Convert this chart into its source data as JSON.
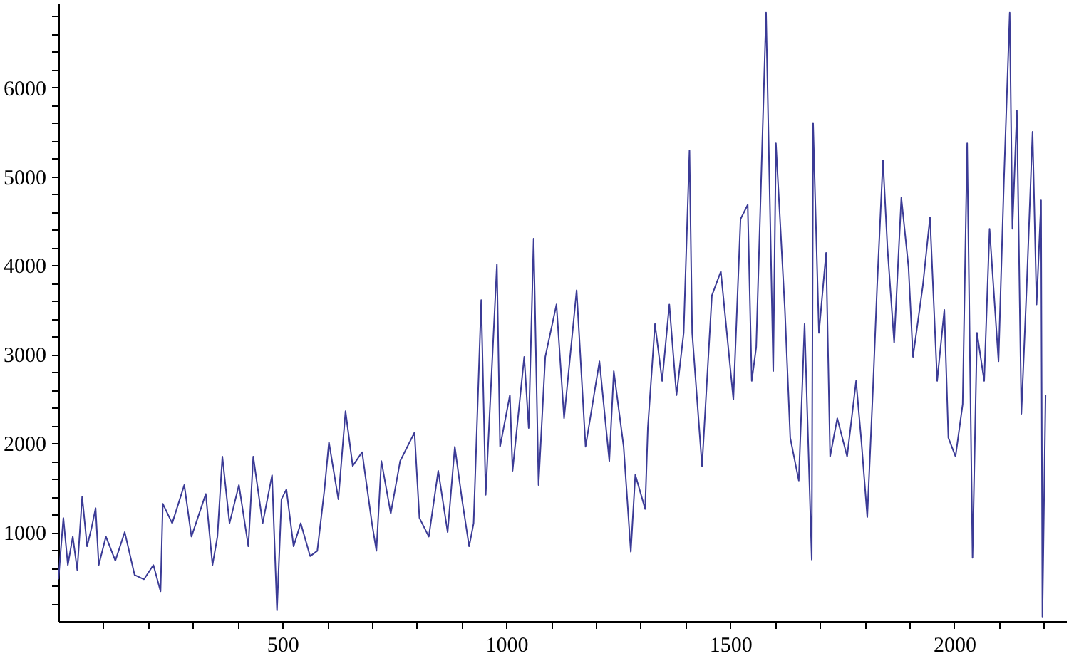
{
  "chart_data": {
    "type": "line",
    "xlim": [
      0,
      2250
    ],
    "ylim": [
      0,
      6950
    ],
    "xticks": [
      {
        "value": 100,
        "label": null
      },
      {
        "value": 200,
        "label": null
      },
      {
        "value": 300,
        "label": null
      },
      {
        "value": 400,
        "label": null
      },
      500,
      {
        "value": 600,
        "label": null
      },
      {
        "value": 700,
        "label": null
      },
      {
        "value": 800,
        "label": null
      },
      {
        "value": 900,
        "label": null
      },
      1000,
      {
        "value": 1100,
        "label": null
      },
      {
        "value": 1200,
        "label": null
      },
      {
        "value": 1300,
        "label": null
      },
      {
        "value": 1400,
        "label": null
      },
      1500,
      {
        "value": 1600,
        "label": null
      },
      {
        "value": 1700,
        "label": null
      },
      {
        "value": 1800,
        "label": null
      },
      {
        "value": 1900,
        "label": null
      },
      2000,
      {
        "value": 2100,
        "label": null
      },
      {
        "value": 2200,
        "label": null
      }
    ],
    "yticks": [
      {
        "value": 200,
        "label": null
      },
      {
        "value": 400,
        "label": null
      },
      {
        "value": 600,
        "label": null
      },
      {
        "value": 800,
        "label": null
      },
      1000,
      {
        "value": 1200,
        "label": null
      },
      {
        "value": 1400,
        "label": null
      },
      {
        "value": 1600,
        "label": null
      },
      {
        "value": 1800,
        "label": null
      },
      2000,
      {
        "value": 2200,
        "label": null
      },
      {
        "value": 2400,
        "label": null
      },
      {
        "value": 2600,
        "label": null
      },
      {
        "value": 2800,
        "label": null
      },
      3000,
      {
        "value": 3200,
        "label": null
      },
      {
        "value": 3400,
        "label": null
      },
      {
        "value": 3600,
        "label": null
      },
      {
        "value": 3800,
        "label": null
      },
      4000,
      {
        "value": 4200,
        "label": null
      },
      {
        "value": 4400,
        "label": null
      },
      {
        "value": 4600,
        "label": null
      },
      {
        "value": 4800,
        "label": null
      },
      5000,
      {
        "value": 5200,
        "label": null
      },
      {
        "value": 5400,
        "label": null
      },
      {
        "value": 5600,
        "label": null
      },
      {
        "value": 5800,
        "label": null
      },
      6000,
      {
        "value": 6200,
        "label": null
      },
      {
        "value": 6400,
        "label": null
      },
      {
        "value": 6600,
        "label": null
      },
      {
        "value": 6800,
        "label": null
      }
    ],
    "grid": false,
    "marker": "none",
    "line_style": "solid",
    "series": [
      {
        "color": "#3b3b96",
        "x": [
          0,
          11,
          21,
          32,
          42,
          53,
          64,
          74,
          83,
          90,
          106,
          127,
          148,
          170,
          191,
          212,
          228,
          233,
          254,
          281,
          297,
          329,
          344,
          355,
          366,
          382,
          403,
          424,
          435,
          456,
          477,
          488,
          498,
          509,
          525,
          541,
          562,
          578,
          594,
          604,
          625,
          641,
          657,
          678,
          700,
          710,
          721,
          742,
          763,
          795,
          806,
          827,
          848,
          869,
          885,
          901,
          917,
          927,
          944,
          954,
          979,
          986,
          1008,
          1014,
          1040,
          1050,
          1061,
          1072,
          1087,
          1112,
          1129,
          1157,
          1177,
          1208,
          1230,
          1240,
          1262,
          1278,
          1288,
          1310,
          1316,
          1332,
          1348,
          1364,
          1380,
          1396,
          1409,
          1415,
          1437,
          1459,
          1479,
          1507,
          1523,
          1539,
          1548,
          1558,
          1580,
          1596,
          1602,
          1622,
          1634,
          1653,
          1666,
          1682,
          1685,
          1698,
          1714,
          1723,
          1739,
          1761,
          1781,
          1793,
          1806,
          1819,
          1828,
          1841,
          1851,
          1866,
          1882,
          1898,
          1908,
          1930,
          1946,
          1962,
          1978,
          1987,
          2003,
          2019,
          2029,
          2041,
          2051,
          2067,
          2079,
          2099,
          2111,
          2124,
          2130,
          2140,
          2150,
          2162,
          2175,
          2184,
          2194,
          2197,
          2204
        ],
        "values": [
          470,
          1160,
          630,
          950,
          575,
          1400,
          840,
          1050,
          1270,
          630,
          950,
          680,
          1000,
          520,
          470,
          630,
          335,
          1320,
          1100,
          1530,
          950,
          1430,
          630,
          950,
          1850,
          1100,
          1530,
          840,
          1850,
          1100,
          1640,
          120,
          1370,
          1480,
          840,
          1100,
          730,
          790,
          1480,
          2010,
          1370,
          2360,
          1745,
          1900,
          1100,
          790,
          1800,
          1210,
          1800,
          2120,
          1160,
          950,
          1690,
          1000,
          1960,
          1370,
          840,
          1100,
          3610,
          1420,
          4010,
          1960,
          2540,
          1690,
          2970,
          2170,
          4300,
          1530,
          2970,
          3560,
          2280,
          3720,
          1960,
          2920,
          1800,
          2810,
          1960,
          780,
          1645,
          1260,
          2170,
          3340,
          2700,
          3560,
          2540,
          3240,
          5290,
          3240,
          1740,
          3660,
          3930,
          2490,
          4520,
          4680,
          2700,
          3080,
          6840,
          2810,
          5370,
          3500,
          2060,
          1580,
          3340,
          690,
          5600,
          3240,
          4140,
          1850,
          2280,
          1850,
          2700,
          2010,
          1170,
          2650,
          3770,
          5180,
          4200,
          3130,
          4760,
          3980,
          2970,
          3770,
          4540,
          2700,
          3500,
          2060,
          1850,
          2440,
          5370,
          710,
          3240,
          2700,
          4410,
          2920,
          4940,
          6840,
          4410,
          5740,
          2330,
          3770,
          5500,
          3560,
          4730,
          50,
          2540
        ]
      }
    ]
  }
}
